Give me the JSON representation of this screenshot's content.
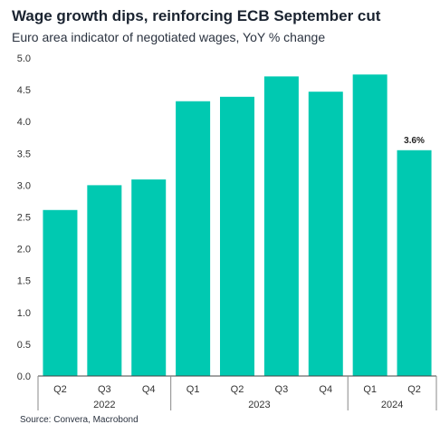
{
  "title": "Wage growth dips, reinforcing ECB September cut",
  "subtitle": "Euro area indicator of negotiated wages, YoY % change",
  "source": "Source: Convera, Macrobond",
  "colors": {
    "bar": "#00c9b1",
    "axis": "#444444",
    "separator": "#888888"
  },
  "chart_data": {
    "type": "bar",
    "categories": [
      "Q2",
      "Q3",
      "Q4",
      "Q1",
      "Q2",
      "Q3",
      "Q4",
      "Q1",
      "Q2"
    ],
    "year_groups": [
      {
        "label": "2022",
        "start": 0,
        "end": 2
      },
      {
        "label": "2023",
        "start": 3,
        "end": 6
      },
      {
        "label": "2024",
        "start": 7,
        "end": 8
      }
    ],
    "values": [
      2.61,
      3.0,
      3.09,
      4.32,
      4.39,
      4.71,
      4.47,
      4.74,
      3.55
    ],
    "data_labels": [
      {
        "index": 8,
        "text": "3.6%"
      }
    ],
    "ylim": [
      0,
      5
    ],
    "yticks": [
      "0.0",
      "0.5",
      "1.0",
      "1.5",
      "2.0",
      "2.5",
      "3.0",
      "3.5",
      "4.0",
      "4.5",
      "5.0"
    ],
    "xlabel": "",
    "ylabel": "",
    "grid": false,
    "legend": "none"
  }
}
